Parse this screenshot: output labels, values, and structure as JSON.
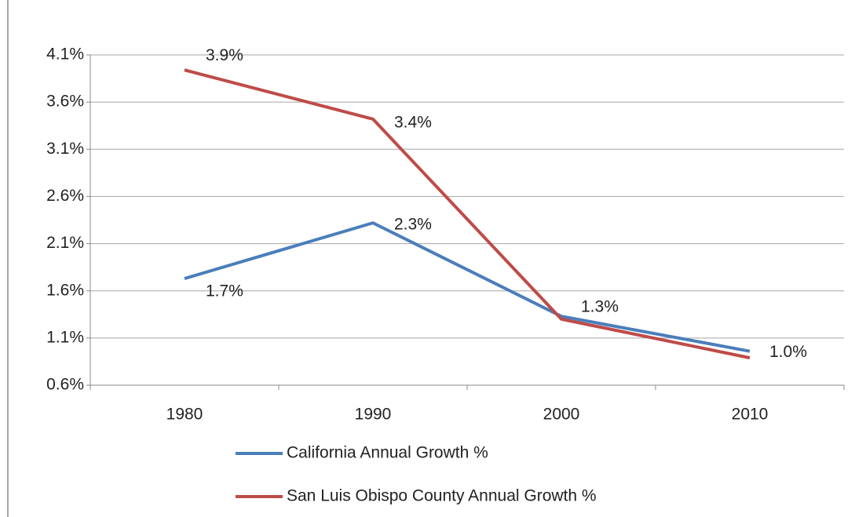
{
  "chart_data": {
    "type": "line",
    "categories": [
      "1980",
      "1990",
      "2000",
      "2010"
    ],
    "series": [
      {
        "name": "California Annual Growth %",
        "color": "#4a7ebb",
        "values": [
          1.73,
          2.32,
          1.33,
          0.96
        ],
        "value_labels": [
          "1.7%",
          "2.3%",
          "1.3%",
          "1.0%"
        ]
      },
      {
        "name": "San Luis Obispo County Annual Growth %",
        "color": "#be4b48",
        "values": [
          3.94,
          3.42,
          1.3,
          0.89
        ],
        "value_labels": [
          "3.9%",
          "3.4%",
          null,
          null
        ]
      }
    ],
    "ylim": [
      0.6,
      4.1
    ],
    "yticks": [
      {
        "value": 0.6,
        "label": "0.6%"
      },
      {
        "value": 1.1,
        "label": "1.1%"
      },
      {
        "value": 1.6,
        "label": "1.6%"
      },
      {
        "value": 2.1,
        "label": "2.1%"
      },
      {
        "value": 2.6,
        "label": "2.6%"
      },
      {
        "value": 3.1,
        "label": "3.1%"
      },
      {
        "value": 3.6,
        "label": "3.6%"
      },
      {
        "value": 4.1,
        "label": "4.1%"
      }
    ],
    "grid": true,
    "legend": "bottom"
  }
}
